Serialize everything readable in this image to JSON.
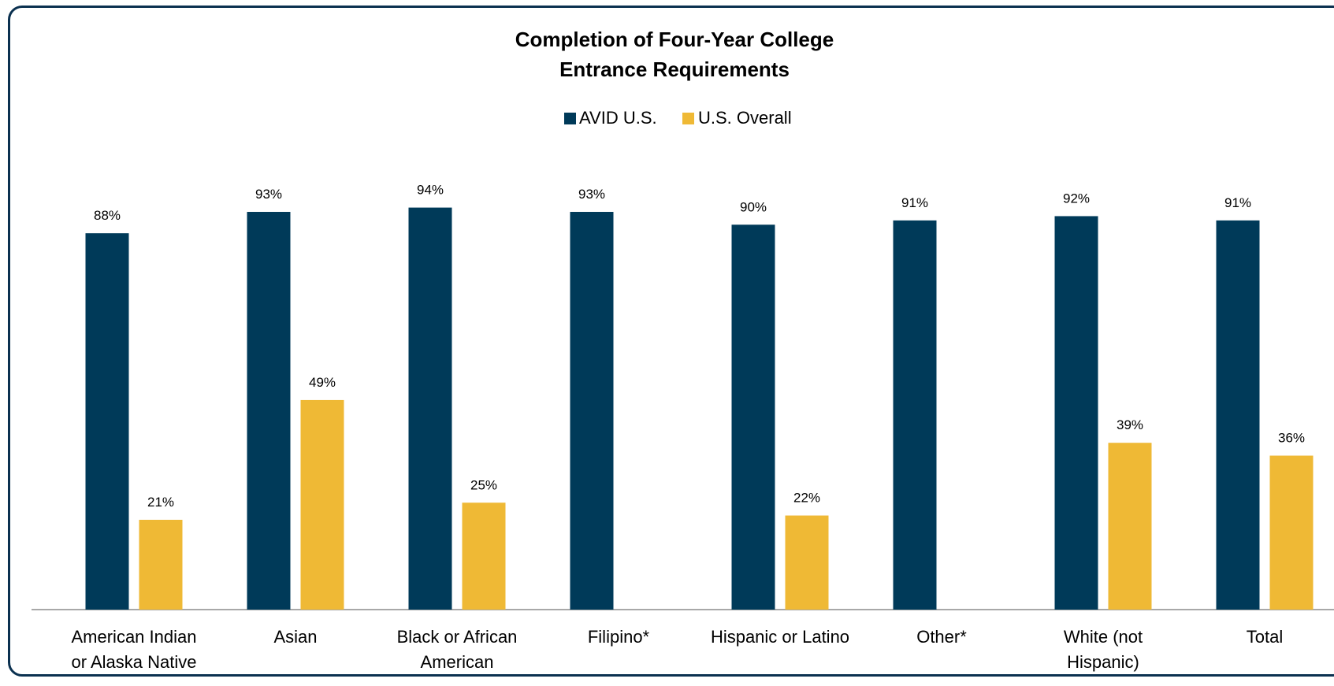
{
  "chart_data": {
    "type": "bar",
    "title": "Completion of Four-Year College Entrance Requirements",
    "title_lines": [
      "Completion of Four-Year College",
      "Entrance Requirements"
    ],
    "legend_position": "top",
    "grid": false,
    "ylim": [
      0,
      100
    ],
    "categories": [
      "American Indian or Alaska Native",
      "Asian",
      "Black or African American",
      "Filipino*",
      "Hispanic or Latino",
      "Other*",
      "White (not Hispanic)",
      "Total"
    ],
    "category_lines": [
      [
        "American Indian",
        "or Alaska Native"
      ],
      [
        "Asian"
      ],
      [
        "Black or African",
        "American"
      ],
      [
        "Filipino*"
      ],
      [
        "Hispanic or Latino"
      ],
      [
        "Other*"
      ],
      [
        "White (not",
        "Hispanic)"
      ],
      [
        "Total"
      ]
    ],
    "series": [
      {
        "name": "AVID U.S.",
        "color": "#003a59",
        "values": [
          88,
          93,
          94,
          93,
          90,
          91,
          92,
          91
        ]
      },
      {
        "name": "U.S. Overall",
        "color": "#efb935",
        "values": [
          21,
          49,
          25,
          null,
          22,
          null,
          39,
          36
        ]
      }
    ]
  }
}
